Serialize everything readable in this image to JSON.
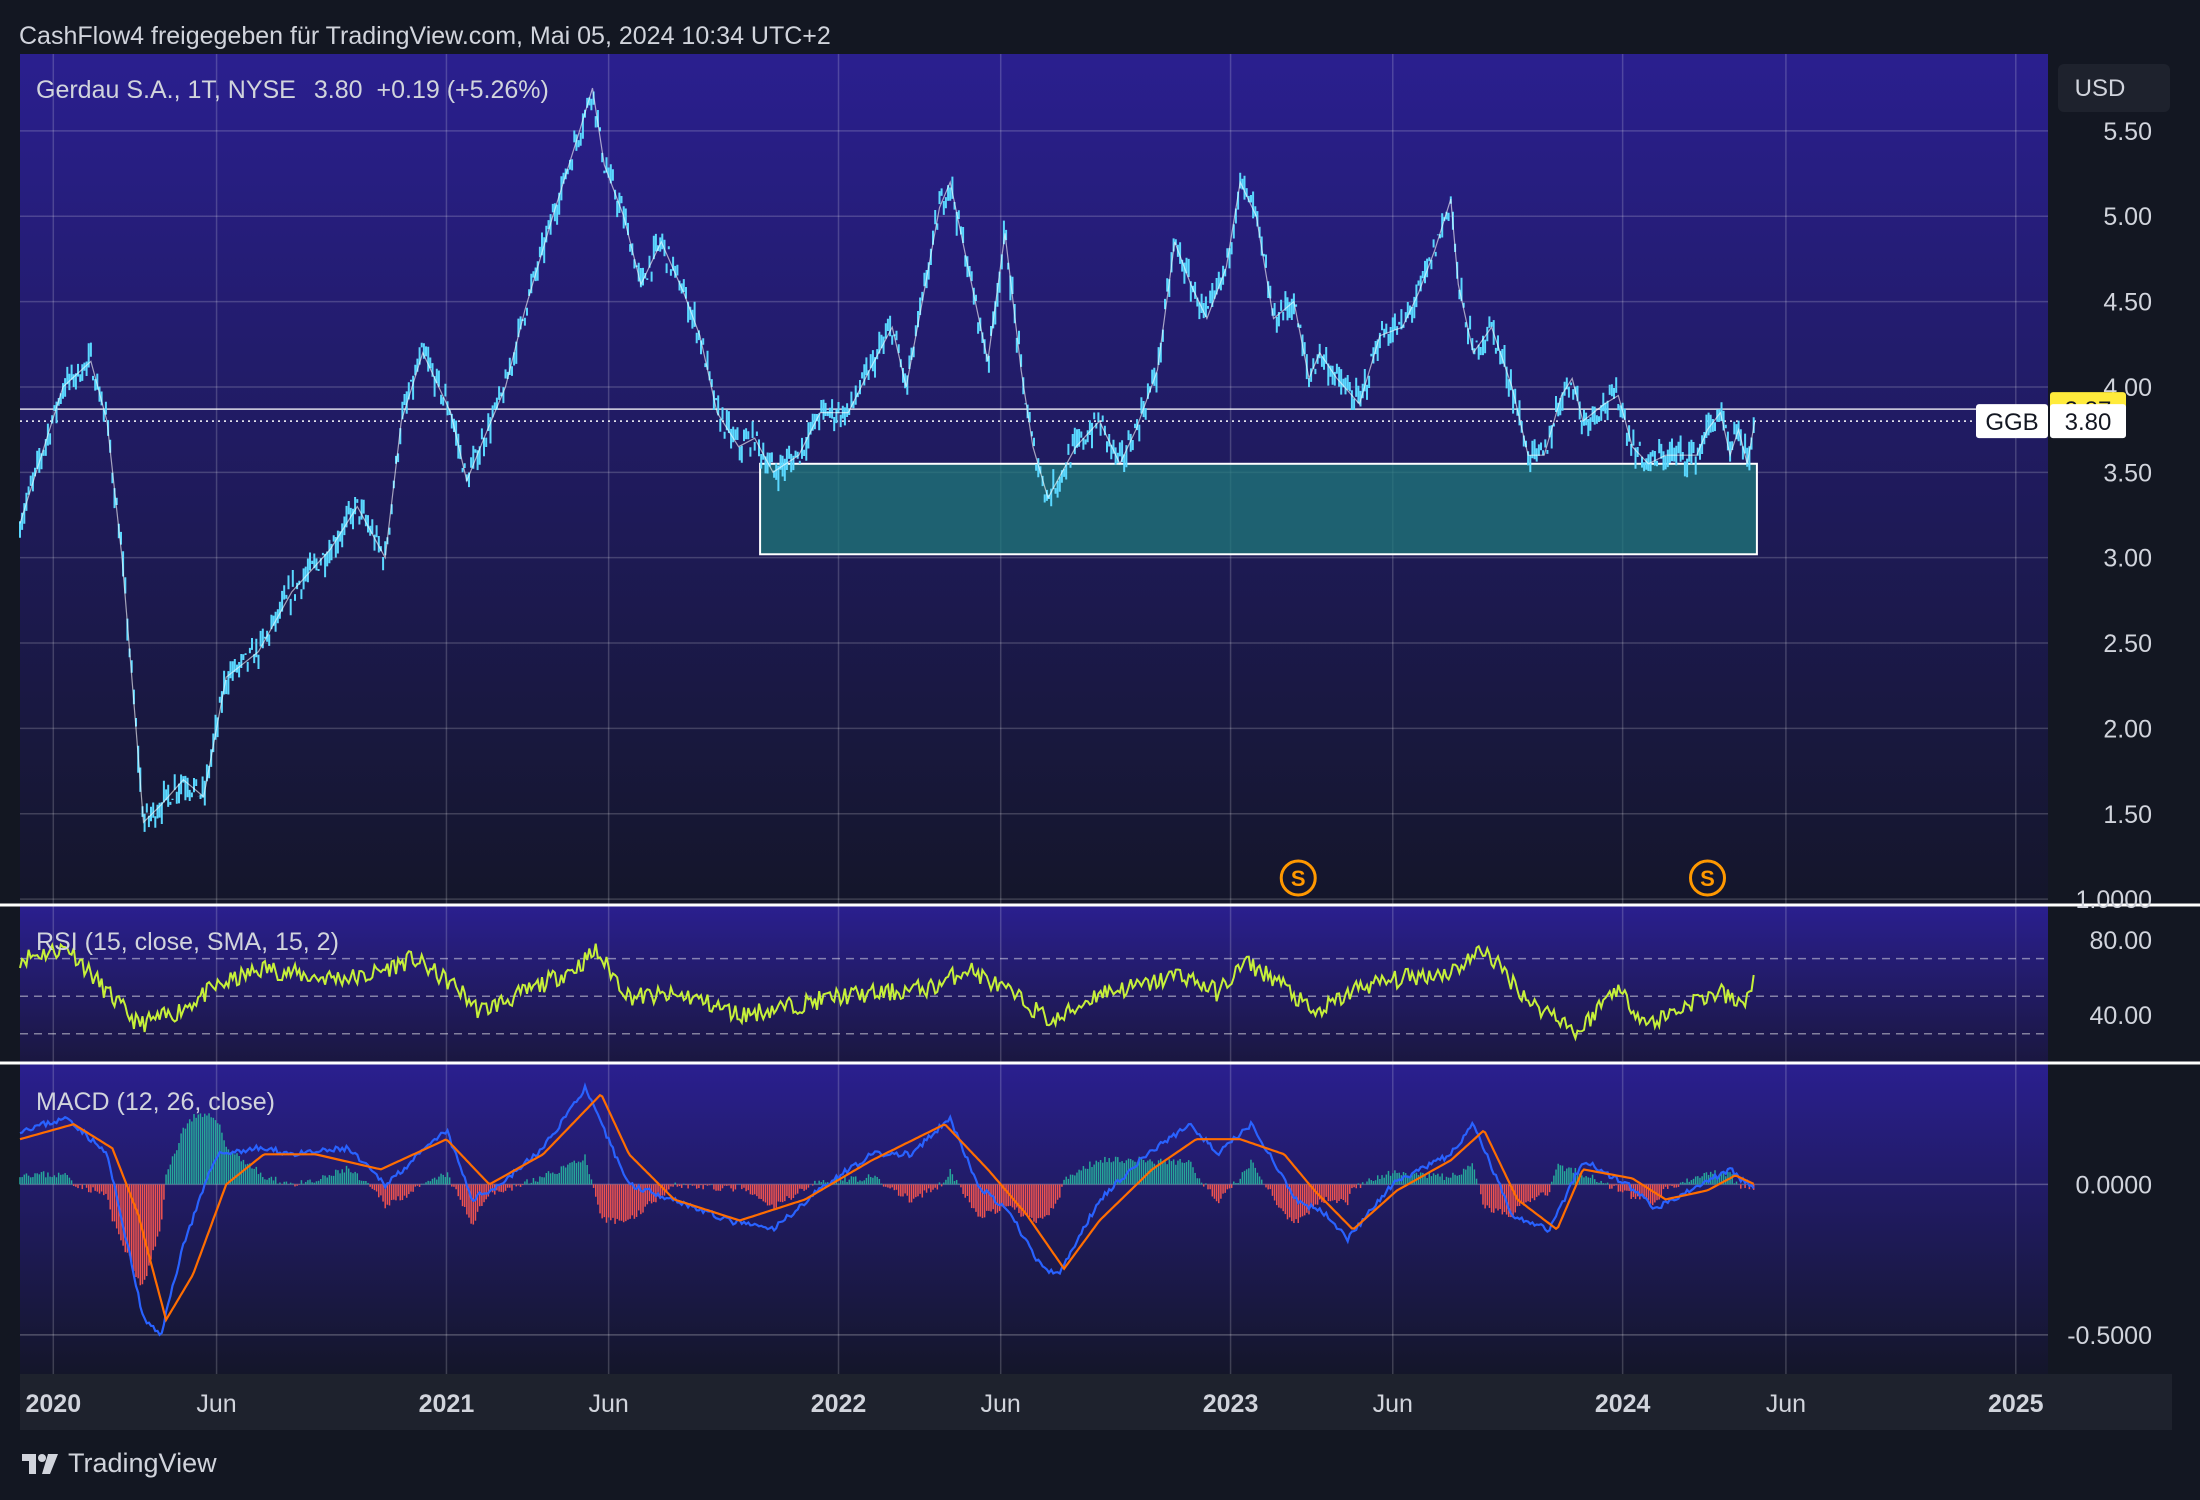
{
  "header": {
    "share_line": "CashFlow4 freigegeben für TradingView.com, Mai 05, 2024 10:34 UTC+2"
  },
  "brand": {
    "name": "TradingView"
  },
  "legend": {
    "symbol": "Gerdau S.A., 1T, NYSE",
    "last": "3.80",
    "change": "+0.19 (+5.26%)"
  },
  "currency_button": "USD",
  "price_labels": {
    "high_line": "3.87",
    "ticker": "GGB",
    "last": "3.80"
  },
  "colors": {
    "background_top": "#2a1f8f",
    "background_bottom": "#14162a",
    "price_line": "#5ad8ff",
    "rsi_line": "#c6f03a",
    "macd_line": "#2962ff",
    "signal_line": "#ff6d00",
    "hist_up": "#26a69a",
    "hist_down": "#ef5350",
    "zone_fill": "#1f7a7a",
    "split_marker": "#ff9800"
  },
  "icons": {
    "split": "split-s-marker-icon",
    "logo": "tradingview-logo-icon"
  },
  "x_axis": {
    "ticks": [
      {
        "label": "2020",
        "date": "2020-01-01",
        "bold": true
      },
      {
        "label": "Jun",
        "date": "2020-06-01",
        "bold": false
      },
      {
        "label": "2021",
        "date": "2021-01-01",
        "bold": true
      },
      {
        "label": "Jun",
        "date": "2021-06-01",
        "bold": false
      },
      {
        "label": "2022",
        "date": "2022-01-01",
        "bold": true
      },
      {
        "label": "Jun",
        "date": "2022-06-01",
        "bold": false
      },
      {
        "label": "2023",
        "date": "2023-01-01",
        "bold": true
      },
      {
        "label": "Jun",
        "date": "2023-06-01",
        "bold": false
      },
      {
        "label": "2024",
        "date": "2024-01-01",
        "bold": true
      },
      {
        "label": "Jun",
        "date": "2024-06-01",
        "bold": false
      },
      {
        "label": "2025",
        "date": "2025-01-01",
        "bold": true
      }
    ]
  },
  "chart_data": [
    {
      "type": "line",
      "panel": "price",
      "title": "Gerdau S.A., 1T, NYSE",
      "x_range": [
        "2019-12-01",
        "2025-01-31"
      ],
      "ylim": [
        0.96,
        5.95
      ],
      "y_ticks": [
        "5.50",
        "5.00",
        "4.50",
        "4.00",
        "3.50",
        "3.00",
        "2.50",
        "2.00",
        "1.50",
        "1.0000"
      ],
      "series": [
        {
          "x": [
            "2019-12-01",
            "2020-01-10",
            "2020-02-05",
            "2020-02-20",
            "2020-03-05",
            "2020-03-18",
            "2020-03-25",
            "2020-04-10",
            "2020-05-01",
            "2020-05-20",
            "2020-06-10",
            "2020-07-10",
            "2020-08-10",
            "2020-09-15",
            "2020-10-10",
            "2020-11-05",
            "2020-11-20",
            "2020-12-10",
            "2021-01-05",
            "2021-01-20",
            "2021-02-05",
            "2021-02-25",
            "2021-03-15",
            "2021-04-10",
            "2021-05-05",
            "2021-05-17",
            "2021-05-28",
            "2021-06-15",
            "2021-07-01",
            "2021-07-20",
            "2021-08-10",
            "2021-08-25",
            "2021-09-10",
            "2021-09-30",
            "2021-10-15",
            "2021-11-01",
            "2021-11-25",
            "2021-12-15",
            "2022-01-10",
            "2022-01-30",
            "2022-02-20",
            "2022-03-05",
            "2022-03-20",
            "2022-04-05",
            "2022-04-15",
            "2022-05-05",
            "2022-05-20",
            "2022-06-05",
            "2022-06-20",
            "2022-07-01",
            "2022-07-15",
            "2022-08-10",
            "2022-09-01",
            "2022-09-20",
            "2022-10-05",
            "2022-10-25",
            "2022-11-10",
            "2022-11-25",
            "2022-12-10",
            "2022-12-28",
            "2023-01-10",
            "2023-01-25",
            "2023-02-10",
            "2023-03-01",
            "2023-03-15",
            "2023-03-25",
            "2023-04-10",
            "2023-05-01",
            "2023-05-20",
            "2023-06-10",
            "2023-06-25",
            "2023-07-10",
            "2023-07-25",
            "2023-08-01",
            "2023-08-15",
            "2023-09-01",
            "2023-09-20",
            "2023-10-05",
            "2023-10-20",
            "2023-11-05",
            "2023-11-15",
            "2023-11-25",
            "2023-12-15",
            "2023-12-28",
            "2024-01-10",
            "2024-01-25",
            "2024-02-10",
            "2024-02-25",
            "2024-03-10",
            "2024-03-20",
            "2024-04-01",
            "2024-04-10",
            "2024-04-18",
            "2024-04-26",
            "2024-05-03"
          ],
          "y": [
            3.2,
            4.0,
            4.15,
            3.8,
            3.0,
            2.0,
            1.45,
            1.55,
            1.7,
            1.6,
            2.3,
            2.45,
            2.8,
            3.05,
            3.3,
            3.0,
            3.8,
            4.2,
            3.85,
            3.45,
            3.7,
            4.0,
            4.45,
            5.0,
            5.5,
            5.75,
            5.3,
            5.0,
            4.6,
            4.85,
            4.55,
            4.3,
            3.85,
            3.65,
            3.7,
            3.5,
            3.6,
            3.85,
            3.85,
            4.1,
            4.35,
            4.0,
            4.5,
            5.05,
            5.2,
            4.6,
            4.15,
            4.9,
            4.1,
            3.65,
            3.35,
            3.65,
            3.8,
            3.55,
            3.75,
            4.1,
            4.85,
            4.6,
            4.4,
            4.7,
            5.2,
            5.0,
            4.4,
            4.5,
            4.05,
            4.2,
            4.05,
            3.9,
            4.3,
            4.35,
            4.55,
            4.8,
            5.1,
            4.6,
            4.2,
            4.35,
            4.0,
            3.6,
            3.6,
            3.95,
            4.05,
            3.8,
            3.9,
            3.95,
            3.65,
            3.55,
            3.6,
            3.6,
            3.6,
            3.75,
            3.85,
            3.6,
            3.75,
            3.55,
            3.8
          ]
        }
      ],
      "overlays": [
        {
          "type": "zone",
          "x": [
            "2021-10-20",
            "2024-05-05"
          ],
          "y": [
            3.02,
            3.55
          ]
        },
        {
          "type": "hline",
          "y": 3.87
        },
        {
          "type": "dotted_hline",
          "y": 3.8
        }
      ],
      "markers": [
        {
          "type": "split",
          "label": "S",
          "date": "2023-03-05"
        },
        {
          "type": "split",
          "label": "S",
          "date": "2024-03-20"
        }
      ]
    },
    {
      "type": "line",
      "panel": "rsi",
      "title": "RSI (15, close, SMA, 15, 2)",
      "ylim": [
        15,
        98
      ],
      "y_ticks": [
        "80.00",
        "40.00"
      ],
      "bands": [
        70,
        50,
        30
      ],
      "series": [
        {
          "name": "RSI",
          "x": [
            "2019-12-01",
            "2020-01-15",
            "2020-02-20",
            "2020-03-20",
            "2020-04-20",
            "2020-06-01",
            "2020-07-15",
            "2020-09-01",
            "2020-10-15",
            "2020-12-01",
            "2021-01-10",
            "2021-02-01",
            "2021-03-15",
            "2021-05-01",
            "2021-05-20",
            "2021-06-20",
            "2021-08-15",
            "2021-10-01",
            "2021-11-20",
            "2022-01-01",
            "2022-02-20",
            "2022-04-01",
            "2022-05-01",
            "2022-06-20",
            "2022-07-20",
            "2022-09-01",
            "2022-10-15",
            "2022-11-15",
            "2022-12-20",
            "2023-01-15",
            "2023-02-15",
            "2023-03-20",
            "2023-05-01",
            "2023-06-15",
            "2023-07-25",
            "2023-08-25",
            "2023-10-10",
            "2023-11-01",
            "2023-11-20",
            "2023-12-25",
            "2024-01-25",
            "2024-03-10",
            "2024-04-01",
            "2024-04-20",
            "2024-05-03"
          ],
          "y": [
            70,
            76,
            52,
            35,
            40,
            55,
            65,
            60,
            60,
            70,
            55,
            42,
            52,
            65,
            74,
            50,
            50,
            40,
            45,
            50,
            52,
            55,
            65,
            48,
            36,
            52,
            56,
            62,
            52,
            68,
            58,
            40,
            55,
            60,
            63,
            75,
            45,
            40,
            30,
            55,
            35,
            48,
            52,
            45,
            58
          ]
        }
      ]
    },
    {
      "type": "line",
      "panel": "macd",
      "title": "MACD (12, 26, close)",
      "ylim": [
        -0.63,
        0.4
      ],
      "y_ticks": [
        "0.0000",
        "-0.5000"
      ],
      "series": [
        {
          "name": "MACD",
          "x": [
            "2019-12-01",
            "2020-01-15",
            "2020-02-20",
            "2020-03-10",
            "2020-03-25",
            "2020-04-10",
            "2020-05-01",
            "2020-06-01",
            "2020-07-10",
            "2020-08-15",
            "2020-10-01",
            "2020-11-05",
            "2020-12-01",
            "2021-01-01",
            "2021-01-25",
            "2021-02-20",
            "2021-04-01",
            "2021-05-10",
            "2021-05-25",
            "2021-06-20",
            "2021-08-01",
            "2021-09-20",
            "2021-11-01",
            "2021-12-20",
            "2022-02-01",
            "2022-03-10",
            "2022-04-15",
            "2022-05-10",
            "2022-06-10",
            "2022-07-10",
            "2022-07-25",
            "2022-09-01",
            "2022-10-15",
            "2022-11-25",
            "2022-12-20",
            "2023-01-20",
            "2023-02-10",
            "2023-03-01",
            "2023-04-01",
            "2023-04-20",
            "2023-06-01",
            "2023-07-25",
            "2023-08-15",
            "2023-09-20",
            "2023-10-25",
            "2023-11-25",
            "2024-01-05",
            "2024-02-01",
            "2024-03-15",
            "2024-04-10",
            "2024-05-03"
          ],
          "y": [
            0.18,
            0.22,
            0.1,
            -0.2,
            -0.45,
            -0.5,
            -0.2,
            0.1,
            0.12,
            0.1,
            0.12,
            0.0,
            0.08,
            0.18,
            -0.05,
            0.0,
            0.12,
            0.32,
            0.2,
            0.0,
            -0.05,
            -0.12,
            -0.15,
            0.0,
            0.1,
            0.1,
            0.22,
            0.0,
            -0.1,
            -0.28,
            -0.3,
            -0.05,
            0.1,
            0.2,
            0.1,
            0.2,
            0.08,
            -0.05,
            -0.1,
            -0.18,
            0.0,
            0.1,
            0.2,
            -0.1,
            -0.15,
            0.08,
            0.0,
            -0.08,
            0.0,
            0.05,
            -0.02
          ]
        },
        {
          "name": "Signal",
          "x": [
            "2019-12-01",
            "2020-01-20",
            "2020-02-25",
            "2020-03-20",
            "2020-04-15",
            "2020-05-10",
            "2020-06-10",
            "2020-07-15",
            "2020-09-01",
            "2020-11-01",
            "2021-01-01",
            "2021-02-10",
            "2021-04-01",
            "2021-05-25",
            "2021-06-20",
            "2021-08-01",
            "2021-10-01",
            "2021-12-01",
            "2022-02-01",
            "2022-04-10",
            "2022-05-20",
            "2022-06-25",
            "2022-07-30",
            "2022-09-01",
            "2022-10-20",
            "2022-11-30",
            "2023-01-10",
            "2023-02-20",
            "2023-03-20",
            "2023-04-25",
            "2023-06-05",
            "2023-07-25",
            "2023-08-25",
            "2023-09-25",
            "2023-11-01",
            "2023-11-25",
            "2024-01-10",
            "2024-02-10",
            "2024-03-20",
            "2024-04-15",
            "2024-05-03"
          ],
          "y": [
            0.15,
            0.2,
            0.12,
            -0.1,
            -0.45,
            -0.3,
            0.0,
            0.1,
            0.1,
            0.05,
            0.15,
            0.0,
            0.1,
            0.3,
            0.1,
            -0.05,
            -0.12,
            -0.05,
            0.08,
            0.2,
            0.05,
            -0.1,
            -0.28,
            -0.12,
            0.05,
            0.15,
            0.15,
            0.1,
            -0.02,
            -0.15,
            -0.02,
            0.08,
            0.18,
            -0.05,
            -0.15,
            0.05,
            0.02,
            -0.05,
            -0.02,
            0.03,
            0.0
          ]
        }
      ]
    }
  ]
}
